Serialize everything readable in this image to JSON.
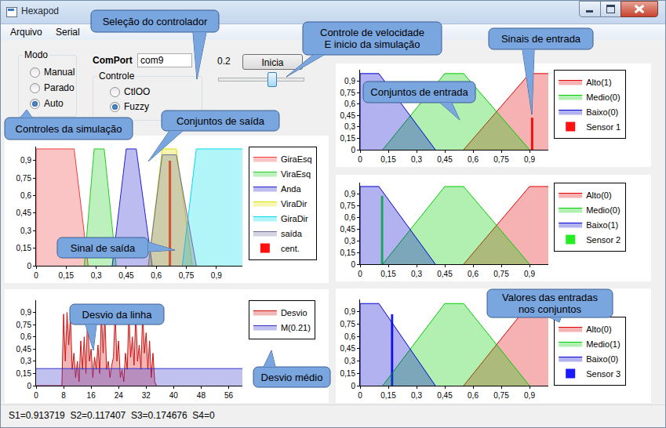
{
  "window": {
    "title": "Hexapod"
  },
  "menu": [
    "Arquivo",
    "Serial"
  ],
  "controls": {
    "mode": {
      "title": "Modo",
      "options": [
        "Manual",
        "Parado",
        "Auto"
      ],
      "selected": "Auto"
    },
    "comport": {
      "label": "ComPort",
      "value": "com9"
    },
    "controller": {
      "title": "Controle",
      "options": [
        "CtlOO",
        "Fuzzy"
      ],
      "selected": "Fuzzy"
    },
    "speed": {
      "label": "0.2"
    },
    "start_button": "Inicia"
  },
  "callouts": [
    [
      "Seleção do controlador"
    ],
    [
      "Controle de velocidade",
      "E inicio da simulação"
    ],
    [
      "Sinais de entrada"
    ],
    [
      "Conjuntos de entrada"
    ],
    [
      "Controles da simulação"
    ],
    [
      "Conjuntos de saída"
    ],
    [
      "Sinal de saída"
    ],
    [
      "Desvio da linha"
    ],
    [
      "Desvio médio"
    ],
    [
      "Valores das entradas",
      "nos conjuntos"
    ]
  ],
  "chart_data": [
    {
      "type": "area",
      "legend": "right",
      "grid": false,
      "xlim": [
        0,
        1.03
      ],
      "xticks": [
        0,
        {
          "value": 0.15,
          "label": "0,15"
        },
        {
          "value": 0.3,
          "label": "0,3"
        },
        {
          "value": 0.45,
          "label": "0,45"
        },
        {
          "value": 0.6,
          "label": "0,6"
        },
        {
          "value": 0.75,
          "label": "0,75"
        },
        {
          "value": 0.9,
          "label": "0,9"
        }
      ],
      "ylim": [
        0,
        1.02
      ],
      "yticks": [
        0,
        {
          "value": 0.15,
          "label": "0,15"
        },
        {
          "value": 0.3,
          "label": "0,3"
        },
        {
          "value": 0.45,
          "label": "0,45"
        },
        {
          "value": 0.6,
          "label": "0,6"
        },
        {
          "value": 0.75,
          "label": "0,75"
        },
        {
          "value": 0.9,
          "label": "0,9"
        }
      ],
      "series": [
        {
          "name": "GiraEsq",
          "color": "#f03c3c",
          "x": [
            0,
            0,
            0.19,
            0.26
          ],
          "values": [
            0,
            1,
            1,
            0
          ]
        },
        {
          "name": "ViraEsq",
          "color": "#22cc22",
          "x": [
            0.24,
            0.29,
            0.34,
            0.4
          ],
          "values": [
            0,
            1,
            1,
            0
          ]
        },
        {
          "name": "Anda",
          "color": "#2020d0",
          "x": [
            0.38,
            0.45,
            0.5,
            0.58
          ],
          "values": [
            0,
            1,
            1,
            0
          ]
        },
        {
          "name": "ViraDir",
          "color": "#e0e000",
          "x": [
            0.56,
            0.63,
            0.7,
            0.78
          ],
          "values": [
            0,
            1,
            1,
            0
          ]
        },
        {
          "name": "GiraDir",
          "color": "#00dde8",
          "x": [
            0.73,
            0.8,
            1.03
          ],
          "values": [
            0,
            1,
            1
          ]
        },
        {
          "name": "saída",
          "color": "#6e6e9e",
          "x": [
            0.56,
            0.63,
            0.7,
            0.8
          ],
          "values": [
            0,
            0.95,
            0.95,
            0
          ]
        },
        {
          "name": "cent.",
          "type": "bar",
          "color": "#ff1010",
          "x": [
            0.668
          ],
          "values": [
            0.9
          ]
        }
      ]
    },
    {
      "type": "area",
      "legend": "right",
      "grid": false,
      "xlim": [
        0,
        60
      ],
      "xticks": [
        0,
        8,
        16,
        24,
        32,
        40,
        48,
        56
      ],
      "ylim": [
        0,
        1.05
      ],
      "yticks": [
        0,
        {
          "value": 0.15,
          "label": "0,15"
        },
        {
          "value": 0.3,
          "label": "0,3"
        },
        {
          "value": 0.45,
          "label": "0,45"
        },
        {
          "value": 0.6,
          "label": "0,6"
        },
        {
          "value": 0.75,
          "label": "0,75"
        },
        {
          "value": 0.9,
          "label": "0,9"
        }
      ],
      "series": [
        {
          "name": "Desvio",
          "color": "#d01010",
          "x": [
            0,
            7.5,
            8,
            8.5,
            9,
            9.5,
            10,
            10.5,
            11,
            11.5,
            12,
            12.5,
            13,
            13.5,
            14,
            14.5,
            15,
            15.5,
            16,
            16.5,
            17,
            17.5,
            18,
            18.5,
            19,
            19.5,
            20,
            20.5,
            21,
            21.5,
            22,
            22.5,
            23,
            23.5,
            24,
            24.5,
            25,
            25.5,
            26,
            26.5,
            27,
            27.5,
            28,
            28.5,
            29,
            29.5,
            30,
            30.5,
            31,
            31.5,
            32,
            32.5,
            33,
            33.5,
            34,
            34.5,
            35
          ],
          "values": [
            0,
            0,
            0.88,
            0.3,
            0.9,
            0.5,
            0.85,
            0.2,
            0.4,
            0.1,
            0.3,
            0.05,
            0.55,
            0.2,
            0.6,
            0.15,
            0.9,
            0.3,
            0.45,
            0.1,
            0.35,
            0.2,
            0.5,
            0.15,
            0.9,
            0.4,
            0.88,
            0.2,
            0.3,
            0.1,
            0.25,
            0.35,
            0.9,
            0.3,
            0.55,
            0.1,
            0.2,
            0.05,
            0.4,
            0.2,
            0.9,
            0.35,
            0.6,
            0.25,
            0.9,
            0.3,
            0.5,
            0.2,
            0.9,
            0.4,
            0.65,
            0.2,
            0.55,
            0.1,
            0.4,
            0.05,
            0
          ]
        },
        {
          "name": "M(0.21)",
          "color": "#3333cc",
          "x": [
            0,
            60
          ],
          "values": [
            0.21,
            0.21
          ]
        }
      ]
    },
    {
      "type": "area",
      "legend": "right",
      "grid": false,
      "xlim": [
        0,
        1.0
      ],
      "xticks": [
        0,
        {
          "value": 0.15,
          "label": "0,15"
        },
        {
          "value": 0.3,
          "label": "0,3"
        },
        {
          "value": 0.45,
          "label": "0,45"
        },
        {
          "value": 0.6,
          "label": "0,6"
        },
        {
          "value": 0.75,
          "label": "0,75"
        },
        {
          "value": 0.9,
          "label": "0,9"
        }
      ],
      "ylim": [
        0,
        1.05
      ],
      "yticks": [
        0,
        {
          "value": 0.15,
          "label": "0,15"
        },
        {
          "value": 0.3,
          "label": "0,3"
        },
        {
          "value": 0.45,
          "label": "0,45"
        },
        {
          "value": 0.6,
          "label": "0,6"
        },
        {
          "value": 0.75,
          "label": "0,75"
        },
        {
          "value": 0.9,
          "label": "0,9"
        }
      ],
      "series": [
        {
          "name": "Alto(1)",
          "color": "#e00000",
          "x": [
            0.55,
            0.9,
            1.0
          ],
          "values": [
            0,
            1,
            1
          ]
        },
        {
          "name": "Medio(0)",
          "color": "#00cc00",
          "x": [
            0.12,
            0.45,
            0.55,
            0.9
          ],
          "values": [
            0,
            1,
            1,
            0
          ]
        },
        {
          "name": "Baixo(0)",
          "color": "#0000d0",
          "x": [
            0,
            0,
            0.1,
            0.4
          ],
          "values": [
            0,
            1,
            1,
            0
          ]
        },
        {
          "name": "Sensor 1",
          "type": "bar",
          "color": "#ff1010",
          "x": [
            0.914
          ],
          "values": [
            0.42
          ]
        }
      ]
    },
    {
      "type": "area",
      "legend": "right",
      "grid": false,
      "xlim": [
        0,
        1.0
      ],
      "xticks": [
        0,
        {
          "value": 0.15,
          "label": "0,15"
        },
        {
          "value": 0.3,
          "label": "0,3"
        },
        {
          "value": 0.45,
          "label": "0,45"
        },
        {
          "value": 0.6,
          "label": "0,6"
        },
        {
          "value": 0.75,
          "label": "0,75"
        },
        {
          "value": 0.9,
          "label": "0,9"
        }
      ],
      "ylim": [
        0,
        1.05
      ],
      "yticks": [
        0,
        {
          "value": 0.15,
          "label": "0,15"
        },
        {
          "value": 0.3,
          "label": "0,3"
        },
        {
          "value": 0.45,
          "label": "0,45"
        },
        {
          "value": 0.6,
          "label": "0,6"
        },
        {
          "value": 0.75,
          "label": "0,75"
        },
        {
          "value": 0.9,
          "label": "0,9"
        }
      ],
      "series": [
        {
          "name": "Alto(0)",
          "color": "#e00000",
          "x": [
            0.55,
            0.9,
            1.0
          ],
          "values": [
            0,
            1,
            1
          ]
        },
        {
          "name": "Medio(0)",
          "color": "#00cc00",
          "x": [
            0.12,
            0.45,
            0.55,
            0.9
          ],
          "values": [
            0,
            1,
            1,
            0
          ]
        },
        {
          "name": "Baixo(1)",
          "color": "#0000d0",
          "x": [
            0,
            0,
            0.1,
            0.4
          ],
          "values": [
            0,
            1,
            1,
            0
          ]
        },
        {
          "name": "Sensor 2",
          "type": "bar",
          "color": "#22ee22",
          "x": [
            0.117
          ],
          "values": [
            0.88
          ]
        }
      ]
    },
    {
      "type": "area",
      "legend": "right",
      "grid": false,
      "xlim": [
        0,
        1.0
      ],
      "xticks": [
        0,
        {
          "value": 0.15,
          "label": "0,15"
        },
        {
          "value": 0.3,
          "label": "0,3"
        },
        {
          "value": 0.45,
          "label": "0,45"
        },
        {
          "value": 0.6,
          "label": "0,6"
        },
        {
          "value": 0.75,
          "label": "0,75"
        },
        {
          "value": 0.9,
          "label": "0,9"
        }
      ],
      "ylim": [
        0,
        1.05
      ],
      "yticks": [
        0,
        {
          "value": 0.15,
          "label": "0,15"
        },
        {
          "value": 0.3,
          "label": "0,3"
        },
        {
          "value": 0.45,
          "label": "0,45"
        },
        {
          "value": 0.6,
          "label": "0,6"
        },
        {
          "value": 0.75,
          "label": "0,75"
        },
        {
          "value": 0.9,
          "label": "0,9"
        }
      ],
      "series": [
        {
          "name": "Alto(0)",
          "color": "#e00000",
          "x": [
            0.55,
            0.9,
            1.0
          ],
          "values": [
            0,
            1,
            1
          ]
        },
        {
          "name": "Medio(1)",
          "color": "#00cc00",
          "x": [
            0.12,
            0.45,
            0.55,
            0.9
          ],
          "values": [
            0,
            1,
            1,
            0
          ]
        },
        {
          "name": "Baixo(0)",
          "color": "#0000d0",
          "x": [
            0,
            0,
            0.1,
            0.4
          ],
          "values": [
            0,
            1,
            1,
            0
          ]
        },
        {
          "name": "Sensor 3",
          "type": "bar",
          "color": "#1a1aff",
          "x": [
            0.17
          ],
          "values": [
            0.87
          ]
        }
      ]
    }
  ],
  "status_bar": [
    "S1=0.913719",
    "S2=0.117407",
    "S3=0.174676",
    "S4=0"
  ]
}
